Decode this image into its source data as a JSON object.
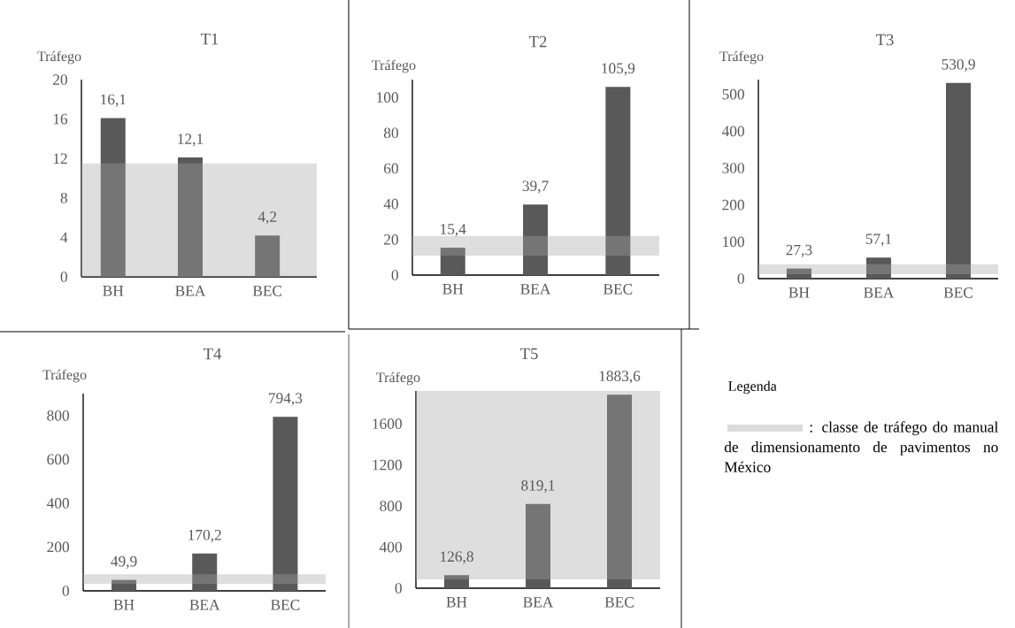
{
  "chart_data": [
    {
      "type": "bar",
      "title": "T1",
      "ylabel": "Tráfego",
      "categories": [
        "BH",
        "BEA",
        "BEC"
      ],
      "values": [
        16.1,
        12.1,
        4.2
      ],
      "value_labels": [
        "16,1",
        "12,1",
        "4,2"
      ],
      "color": "#595959",
      "ylim": [
        0,
        20
      ],
      "yticks": [
        0,
        4,
        8,
        12,
        16,
        20
      ],
      "bands": [
        {
          "axis": "y",
          "from": 0,
          "to": 11.5,
          "color": "#a6a6a6"
        }
      ]
    },
    {
      "type": "bar",
      "title": "T2",
      "ylabel": "Tráfego",
      "categories": [
        "BH",
        "BEA",
        "BEC"
      ],
      "values": [
        15.4,
        39.7,
        105.9
      ],
      "value_labels": [
        "15,4",
        "39,7",
        "105,9"
      ],
      "color": "#595959",
      "ylim": [
        0,
        110
      ],
      "yticks": [
        0,
        20,
        40,
        60,
        80,
        100
      ],
      "bands": [
        {
          "axis": "y",
          "from": 11,
          "to": 22,
          "color": "#a6a6a6"
        }
      ]
    },
    {
      "type": "bar",
      "title": "T3",
      "ylabel": "Tráfego",
      "categories": [
        "BH",
        "BEA",
        "BEC"
      ],
      "values": [
        27.3,
        57.1,
        530.9
      ],
      "value_labels": [
        "27,3",
        "57,1",
        "530,9"
      ],
      "color": "#595959",
      "ylim": [
        0,
        540
      ],
      "yticks": [
        0,
        100,
        200,
        300,
        400,
        500
      ],
      "bands": [
        {
          "axis": "y",
          "from": 12,
          "to": 39,
          "color": "#a6a6a6"
        }
      ]
    },
    {
      "type": "bar",
      "title": "T4",
      "ylabel": "Tráfego",
      "categories": [
        "BH",
        "BEA",
        "BEC"
      ],
      "values": [
        49.9,
        170.2,
        794.3
      ],
      "value_labels": [
        "49,9",
        "170,2",
        "794,3"
      ],
      "color": "#595959",
      "ylim": [
        0,
        900
      ],
      "yticks": [
        0,
        200,
        400,
        600,
        800
      ],
      "bands": [
        {
          "axis": "y",
          "from": 32,
          "to": 76,
          "color": "#a6a6a6"
        }
      ]
    },
    {
      "type": "bar",
      "title": "T5",
      "ylabel": "Tráfego",
      "categories": [
        "BH",
        "BEA",
        "BEC"
      ],
      "values": [
        126.8,
        819.1,
        1883.6
      ],
      "value_labels": [
        "126,8",
        "819,1",
        "1883,6"
      ],
      "color": "#595959",
      "ylim": [
        0,
        1920
      ],
      "yticks": [
        0,
        400,
        800,
        1200,
        1600
      ],
      "bands": [
        {
          "axis": "y",
          "from": 86,
          "to": 1920,
          "color": "#a6a6a6"
        }
      ]
    },
    {
      "type": "other",
      "title": "Legenda",
      "annotations": [
        ": classe de tráfego do manual de dimensionamento de pavimentos no México"
      ],
      "color": "#dcdcdc"
    }
  ]
}
